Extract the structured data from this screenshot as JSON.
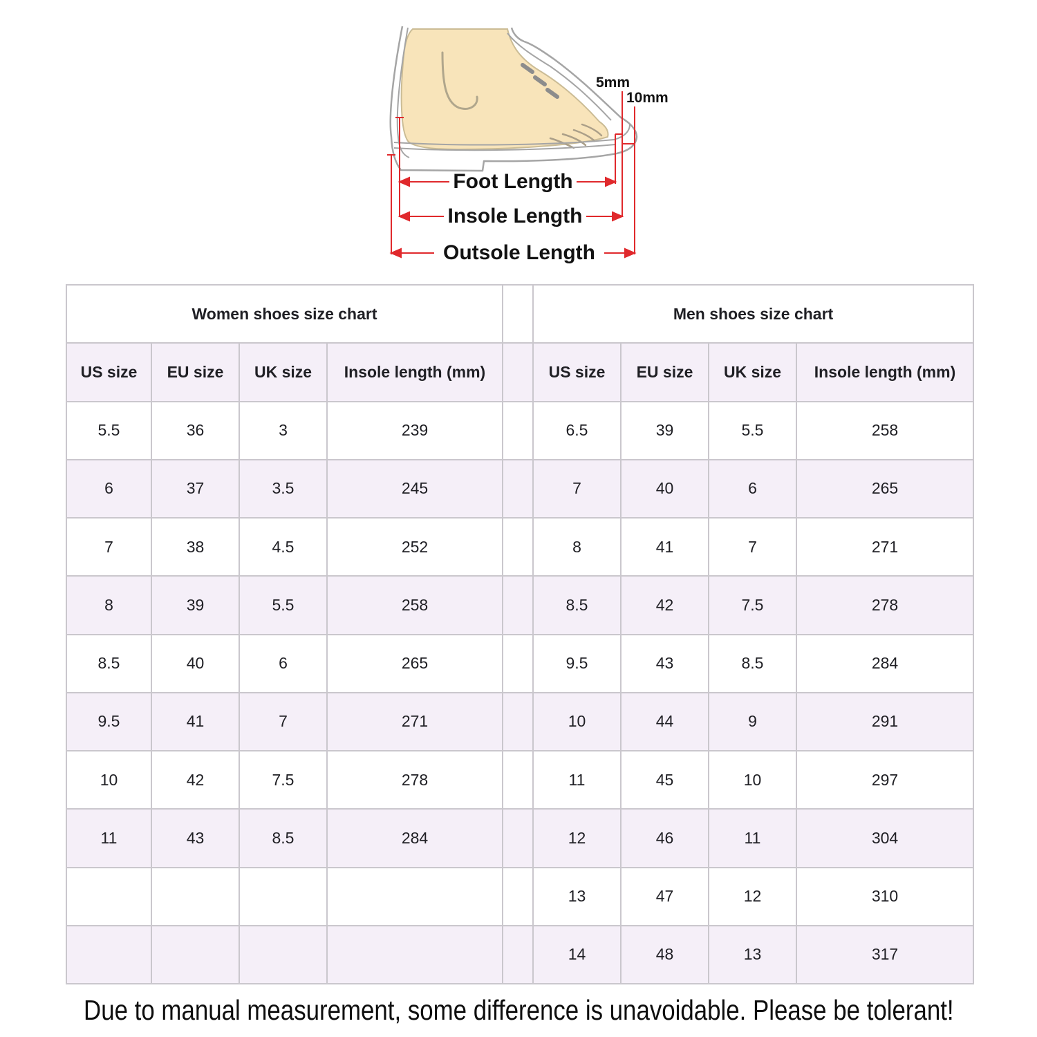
{
  "diagram": {
    "labels": {
      "foot_length": "Foot Length",
      "insole_length": "Insole Length",
      "outsole_length": "Outsole Length",
      "gap_5mm": "5mm",
      "gap_10mm": "10mm"
    },
    "colors": {
      "measurement_red": "#e0292c",
      "foot_fill": "#f8e4ba",
      "shoe_outline_gray": "#a5a5a5"
    }
  },
  "chart_data": [
    {
      "type": "table",
      "title": "Women shoes size chart",
      "columns": [
        "US size",
        "EU size",
        "UK size",
        "Insole length (mm)"
      ],
      "rows": [
        [
          "5.5",
          "36",
          "3",
          "239"
        ],
        [
          "6",
          "37",
          "3.5",
          "245"
        ],
        [
          "7",
          "38",
          "4.5",
          "252"
        ],
        [
          "8",
          "39",
          "5.5",
          "258"
        ],
        [
          "8.5",
          "40",
          "6",
          "265"
        ],
        [
          "9.5",
          "41",
          "7",
          "271"
        ],
        [
          "10",
          "42",
          "7.5",
          "278"
        ],
        [
          "11",
          "43",
          "8.5",
          "284"
        ],
        [
          "",
          "",
          "",
          ""
        ],
        [
          "",
          "",
          "",
          ""
        ]
      ]
    },
    {
      "type": "table",
      "title": "Men shoes size chart",
      "columns": [
        "US size",
        "EU size",
        "UK size",
        "Insole length (mm)"
      ],
      "rows": [
        [
          "6.5",
          "39",
          "5.5",
          "258"
        ],
        [
          "7",
          "40",
          "6",
          "265"
        ],
        [
          "8",
          "41",
          "7",
          "271"
        ],
        [
          "8.5",
          "42",
          "7.5",
          "278"
        ],
        [
          "9.5",
          "43",
          "8.5",
          "284"
        ],
        [
          "10",
          "44",
          "9",
          "291"
        ],
        [
          "11",
          "45",
          "10",
          "297"
        ],
        [
          "12",
          "46",
          "11",
          "304"
        ],
        [
          "13",
          "47",
          "12",
          "310"
        ],
        [
          "14",
          "48",
          "13",
          "317"
        ]
      ]
    }
  ],
  "footer": {
    "note": "Due to manual measurement, some difference is unavoidable. Please be tolerant!"
  },
  "style": {
    "row_alt_color": "#f5eff8",
    "row_base_color": "#ffffff",
    "grid_border_color": "#cac7cd",
    "text_color": "#1f1f24"
  }
}
